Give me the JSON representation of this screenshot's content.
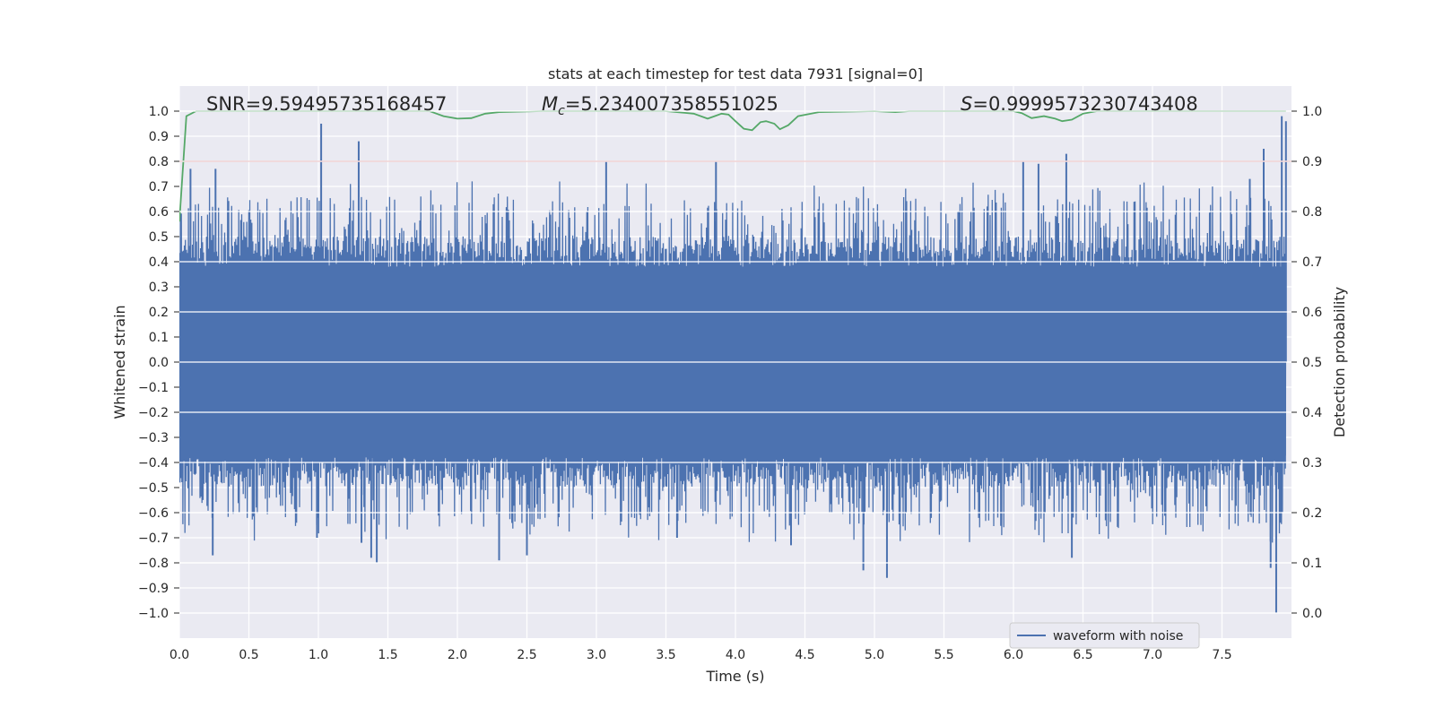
{
  "chart_data": {
    "type": "line",
    "title": "stats at each timestep for test data 7931 [signal=0]",
    "xlabel": "Time (s)",
    "ylabel": "Whitened strain",
    "y2label": "Detection probability",
    "xlim": [
      0.0,
      8.0
    ],
    "ylim": [
      -1.1,
      1.1
    ],
    "y2lim": [
      -0.05,
      1.05
    ],
    "xticks": [
      "0.0",
      "0.5",
      "1.0",
      "1.5",
      "2.0",
      "2.5",
      "3.0",
      "3.5",
      "4.0",
      "4.5",
      "5.0",
      "5.5",
      "6.0",
      "6.5",
      "7.0",
      "7.5"
    ],
    "yticks": [
      "1.0",
      "0.9",
      "0.8",
      "0.7",
      "0.6",
      "0.5",
      "0.4",
      "0.3",
      "0.2",
      "0.1",
      "0.0",
      "−0.1",
      "−0.2",
      "−0.3",
      "−0.4",
      "−0.5",
      "−0.6",
      "−0.7",
      "−0.8",
      "−0.9",
      "−1.0"
    ],
    "y2ticks": [
      "1.0",
      "0.9",
      "0.8",
      "0.7",
      "0.6",
      "0.5",
      "0.4",
      "0.3",
      "0.2",
      "0.1",
      "0.0"
    ],
    "annotations": {
      "snr_label": "SNR=9.59495735168457",
      "mc_symbol": "M",
      "mc_subscript": "c",
      "mc_value": "=5.234007358551025",
      "s_symbol": "S",
      "s_value": "=0.9999573230743408"
    },
    "legend": {
      "label": "waveform with noise",
      "position": "lower-right"
    },
    "threshold": {
      "value": 0.9,
      "axis": "y2",
      "color": "#c44e52"
    },
    "series": [
      {
        "name": "waveform with noise",
        "axis": "y",
        "color": "#4c72b0",
        "noise_envelope": {
          "core": 0.38,
          "typical_peak": 0.55
        },
        "spikes": [
          {
            "x": 1.02,
            "y": 0.95
          },
          {
            "x": 1.29,
            "y": 0.88
          },
          {
            "x": 7.93,
            "y": 0.98
          },
          {
            "x": 7.8,
            "y": 0.85
          },
          {
            "x": 7.96,
            "y": 0.96
          },
          {
            "x": 0.08,
            "y": 0.77
          },
          {
            "x": 0.26,
            "y": 0.77
          },
          {
            "x": 3.07,
            "y": 0.8
          },
          {
            "x": 3.86,
            "y": 0.8
          },
          {
            "x": 6.38,
            "y": 0.83
          },
          {
            "x": 6.07,
            "y": 0.8
          },
          {
            "x": 6.18,
            "y": 0.79
          },
          {
            "x": 7.7,
            "y": 0.73
          },
          {
            "x": 7.89,
            "y": -1.0
          },
          {
            "x": 5.09,
            "y": -0.86
          },
          {
            "x": 4.92,
            "y": -0.83
          },
          {
            "x": 1.42,
            "y": -0.8
          },
          {
            "x": 1.38,
            "y": -0.78
          },
          {
            "x": 2.3,
            "y": -0.79
          },
          {
            "x": 0.24,
            "y": -0.77
          },
          {
            "x": 6.42,
            "y": -0.78
          },
          {
            "x": 0.99,
            "y": -0.7
          },
          {
            "x": 2.5,
            "y": -0.77
          },
          {
            "x": 7.85,
            "y": -0.82
          },
          {
            "x": 4.4,
            "y": -0.73
          },
          {
            "x": 3.58,
            "y": -0.7
          },
          {
            "x": 1.31,
            "y": -0.72
          }
        ]
      },
      {
        "name": "detection probability",
        "axis": "y2",
        "color": "#55a868",
        "x": [
          0.0,
          0.05,
          0.12,
          0.5,
          1.0,
          1.5,
          1.8,
          1.9,
          2.0,
          2.1,
          2.2,
          2.3,
          2.6,
          3.0,
          3.5,
          3.7,
          3.8,
          3.85,
          3.9,
          3.95,
          4.0,
          4.06,
          4.12,
          4.18,
          4.22,
          4.28,
          4.32,
          4.38,
          4.45,
          4.6,
          5.0,
          5.15,
          5.25,
          5.6,
          6.0,
          6.06,
          6.13,
          6.22,
          6.3,
          6.35,
          6.42,
          6.5,
          6.6,
          7.0,
          7.5,
          7.96
        ],
        "y": [
          0.78,
          0.99,
          1.0,
          1.0,
          1.0,
          1.0,
          1.0,
          0.99,
          0.985,
          0.986,
          0.995,
          0.998,
          1.0,
          1.0,
          1.0,
          0.995,
          0.985,
          0.99,
          0.995,
          0.993,
          0.98,
          0.965,
          0.962,
          0.978,
          0.98,
          0.975,
          0.964,
          0.972,
          0.99,
          0.998,
          1.0,
          0.998,
          1.0,
          1.0,
          1.0,
          0.996,
          0.986,
          0.99,
          0.985,
          0.98,
          0.983,
          0.995,
          1.0,
          1.0,
          1.0,
          1.0
        ]
      }
    ]
  }
}
